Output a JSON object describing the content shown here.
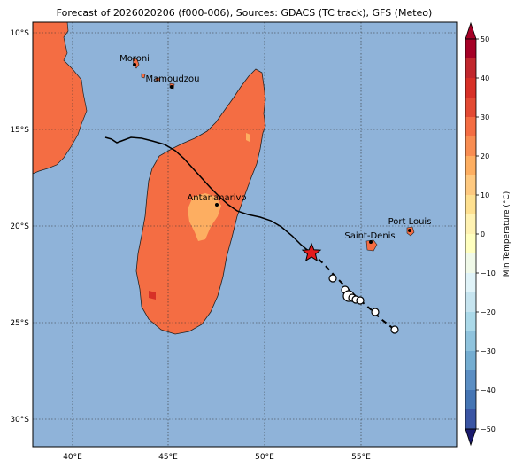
{
  "title": "Forecast of 2026020206 (f000-006), Sources: GDACS (TC track), GFS (Meteo)",
  "map": {
    "lat_labels": [
      "10°S",
      "15°S",
      "20°S",
      "25°S",
      "30°S"
    ],
    "lon_labels": [
      "40°E",
      "45°E",
      "50°E",
      "55°E"
    ],
    "cities": [
      {
        "name": "Moroni"
      },
      {
        "name": "Mamoudzou"
      },
      {
        "name": "Antananarivo"
      },
      {
        "name": "Saint-Denis"
      },
      {
        "name": "Port Louis"
      }
    ],
    "ocean_color": "#8fb3d9",
    "land_color": "#f46d43",
    "warm_patch_color": "#fdae61"
  },
  "colorbar": {
    "label": "Min Temperature (°C)",
    "ticks": [
      "50",
      "40",
      "30",
      "20",
      "10",
      "0",
      "−10",
      "−20",
      "−30",
      "−40",
      "−50"
    ],
    "colors": [
      "#a50026",
      "#d73027",
      "#f46d43",
      "#fdae61",
      "#fee090",
      "#ffffbf",
      "#e0f3f8",
      "#abd9e9",
      "#74add1",
      "#4575b4",
      "#313695"
    ]
  },
  "legend": {
    "current_position": "star-marker",
    "forecast_positions": "circle-markers"
  }
}
